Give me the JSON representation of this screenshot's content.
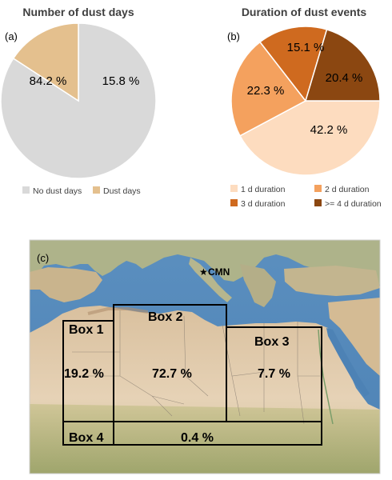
{
  "chart_data": [
    {
      "type": "pie",
      "panel": "(a)",
      "title": "Number of dust days",
      "slices": [
        {
          "label": "No dust days",
          "value": 84.2,
          "display": "84.2 %",
          "color": "#d9d9d9"
        },
        {
          "label": "Dust days",
          "value": 15.8,
          "display": "15.8 %",
          "color": "#e4c08e"
        }
      ]
    },
    {
      "type": "pie",
      "panel": "(b)",
      "title": "Duration of dust events",
      "slices": [
        {
          "label": "1 d duration",
          "value": 42.2,
          "display": "42.2 %",
          "color": "#fddcbf"
        },
        {
          "label": "2 d duration",
          "value": 22.3,
          "display": "22.3 %",
          "color": "#f4a15e"
        },
        {
          "label": "3 d duration",
          "value": 15.1,
          "display": "15.1 %",
          "color": "#cf6a1f"
        },
        {
          "label": ">= 4 d duration",
          "value": 20.4,
          "display": "20.4 %",
          "color": "#8b4711"
        }
      ]
    },
    {
      "type": "map",
      "panel": "(c)",
      "station": "CMN",
      "boxes": [
        {
          "name": "Box 1",
          "value": 19.2,
          "display": "19.2 %"
        },
        {
          "name": "Box 2",
          "value": 72.7,
          "display": "72.7 %"
        },
        {
          "name": "Box 3",
          "value": 7.7,
          "display": "7.7 %"
        },
        {
          "name": "Box 4",
          "value": 0.4,
          "display": "0.4 %"
        }
      ]
    }
  ]
}
